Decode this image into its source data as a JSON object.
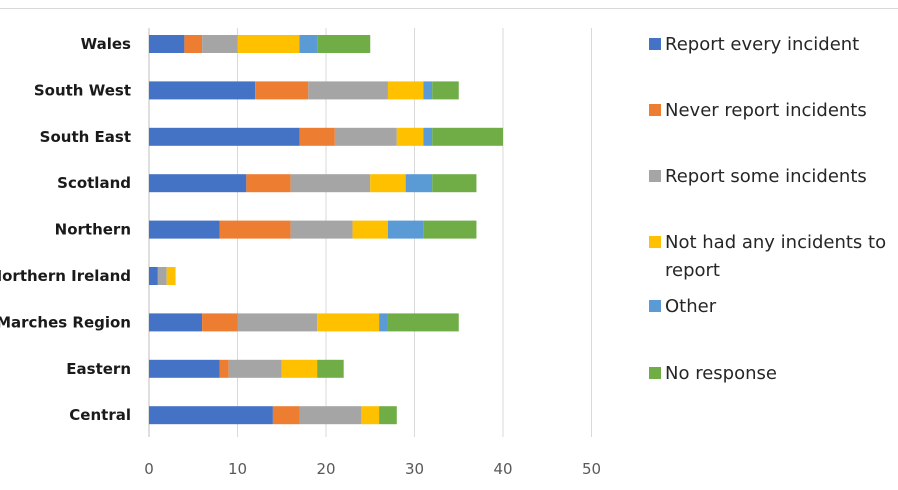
{
  "chart_data": {
    "type": "bar",
    "orientation": "horizontal",
    "stacked": true,
    "categories": [
      "Wales",
      "South West",
      "South East",
      "Scotland",
      "Northern",
      "Northern Ireland",
      "Marches Region",
      "Eastern",
      "Central"
    ],
    "series": [
      {
        "name": "Report every incident",
        "color": "#4472C4",
        "values": [
          4,
          12,
          17,
          11,
          8,
          1,
          6,
          8,
          14
        ]
      },
      {
        "name": "Never report incidents",
        "color": "#ED7D31",
        "values": [
          2,
          6,
          4,
          5,
          8,
          0,
          4,
          1,
          3
        ]
      },
      {
        "name": "Report some incidents",
        "color": "#A5A5A5",
        "values": [
          4,
          9,
          7,
          9,
          7,
          1,
          9,
          6,
          7
        ]
      },
      {
        "name": "Not had any incidents to report",
        "color": "#FFC000",
        "values": [
          7,
          4,
          3,
          4,
          4,
          1,
          7,
          4,
          2
        ]
      },
      {
        "name": "Other",
        "color": "#5B9BD5",
        "values": [
          2,
          1,
          1,
          3,
          4,
          0,
          1,
          0,
          0
        ]
      },
      {
        "name": "No response",
        "color": "#70AD47",
        "values": [
          6,
          3,
          8,
          5,
          6,
          0,
          8,
          3,
          2
        ]
      }
    ],
    "xlim": [
      0,
      50
    ],
    "xticks": [
      0,
      10,
      20,
      30,
      40,
      50
    ],
    "grid": true,
    "legend_position": "right"
  }
}
